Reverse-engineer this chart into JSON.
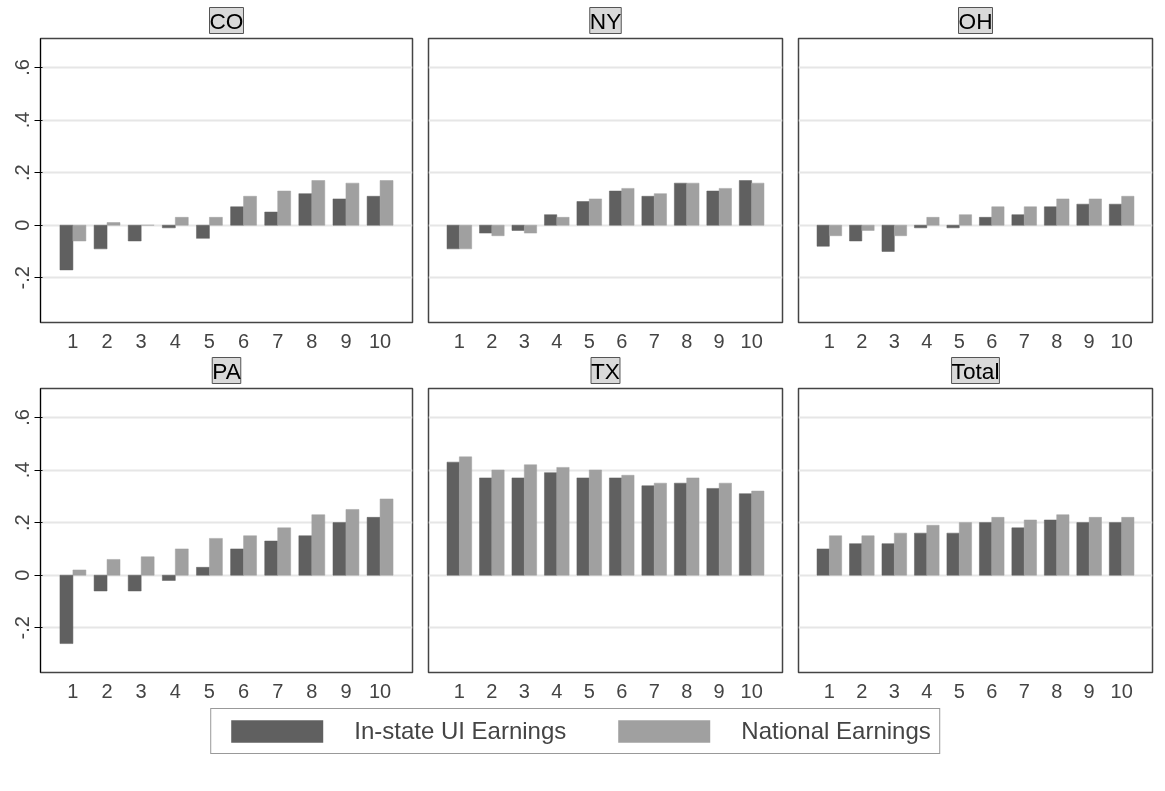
{
  "chart_data": [
    {
      "type": "bar",
      "title": "CO",
      "categories": [
        "1",
        "2",
        "3",
        "4",
        "5",
        "6",
        "7",
        "8",
        "9",
        "10"
      ],
      "ylim": [
        -0.37,
        0.71
      ],
      "yticks": [
        {
          "value": -0.2,
          "label": "-.2"
        },
        0,
        {
          "value": 0.2,
          "label": ".2"
        },
        {
          "value": 0.4,
          "label": ".4"
        },
        {
          "value": 0.6,
          "label": ".6"
        }
      ],
      "grid": "y",
      "series": [
        {
          "color": "#606060",
          "values": [
            -0.17,
            -0.09,
            -0.06,
            -0.01,
            -0.05,
            0.07,
            0.05,
            0.12,
            0.1,
            0.11
          ]
        },
        {
          "color": "#a0a0a0",
          "values": [
            -0.06,
            0.01,
            0.0,
            0.03,
            0.03,
            0.11,
            0.13,
            0.17,
            0.16,
            0.17
          ]
        }
      ]
    },
    {
      "type": "bar",
      "title": "NY",
      "categories": [
        "1",
        "2",
        "3",
        "4",
        "5",
        "6",
        "7",
        "8",
        "9",
        "10"
      ],
      "ylim": [
        -0.37,
        0.71
      ],
      "yticks": [
        {
          "value": -0.2,
          "label": null
        },
        {
          "value": 0,
          "label": null
        },
        {
          "value": 0.2,
          "label": null
        },
        {
          "value": 0.4,
          "label": null
        },
        {
          "value": 0.6,
          "label": null
        }
      ],
      "tick_labels": "x",
      "grid": "y",
      "series": [
        {
          "color": "#606060",
          "values": [
            -0.09,
            -0.03,
            -0.02,
            0.04,
            0.09,
            0.13,
            0.11,
            0.16,
            0.13,
            0.17
          ]
        },
        {
          "color": "#a0a0a0",
          "values": [
            -0.09,
            -0.04,
            -0.03,
            0.03,
            0.1,
            0.14,
            0.12,
            0.16,
            0.14,
            0.16
          ]
        }
      ]
    },
    {
      "type": "bar",
      "title": "OH",
      "categories": [
        "1",
        "2",
        "3",
        "4",
        "5",
        "6",
        "7",
        "8",
        "9",
        "10"
      ],
      "ylim": [
        -0.37,
        0.71
      ],
      "yticks": [
        {
          "value": -0.2,
          "label": null
        },
        {
          "value": 0,
          "label": null
        },
        {
          "value": 0.2,
          "label": null
        },
        {
          "value": 0.4,
          "label": null
        },
        {
          "value": 0.6,
          "label": null
        }
      ],
      "tick_labels": "x",
      "grid": "y",
      "series": [
        {
          "color": "#606060",
          "values": [
            -0.08,
            -0.06,
            -0.1,
            -0.01,
            -0.01,
            0.03,
            0.04,
            0.07,
            0.08,
            0.08
          ]
        },
        {
          "color": "#a0a0a0",
          "values": [
            -0.04,
            -0.02,
            -0.04,
            0.03,
            0.04,
            0.07,
            0.07,
            0.1,
            0.1,
            0.11
          ]
        }
      ]
    },
    {
      "type": "bar",
      "title": "PA",
      "categories": [
        "1",
        "2",
        "3",
        "4",
        "5",
        "6",
        "7",
        "8",
        "9",
        "10"
      ],
      "ylim": [
        -0.37,
        0.71
      ],
      "yticks": [
        {
          "value": -0.2,
          "label": "-.2"
        },
        0,
        {
          "value": 0.2,
          "label": ".2"
        },
        {
          "value": 0.4,
          "label": ".4"
        },
        {
          "value": 0.6,
          "label": ".6"
        }
      ],
      "grid": "y",
      "series": [
        {
          "color": "#606060",
          "values": [
            -0.26,
            -0.06,
            -0.06,
            -0.02,
            0.03,
            0.1,
            0.13,
            0.15,
            0.2,
            0.22
          ]
        },
        {
          "color": "#a0a0a0",
          "values": [
            0.02,
            0.06,
            0.07,
            0.1,
            0.14,
            0.15,
            0.18,
            0.23,
            0.25,
            0.29
          ]
        }
      ]
    },
    {
      "type": "bar",
      "title": "TX",
      "categories": [
        "1",
        "2",
        "3",
        "4",
        "5",
        "6",
        "7",
        "8",
        "9",
        "10"
      ],
      "ylim": [
        -0.37,
        0.71
      ],
      "yticks": [
        {
          "value": -0.2,
          "label": null
        },
        {
          "value": 0,
          "label": null
        },
        {
          "value": 0.2,
          "label": null
        },
        {
          "value": 0.4,
          "label": null
        },
        {
          "value": 0.6,
          "label": null
        }
      ],
      "tick_labels": "x",
      "grid": "y",
      "series": [
        {
          "color": "#606060",
          "values": [
            0.43,
            0.37,
            0.37,
            0.39,
            0.37,
            0.37,
            0.34,
            0.35,
            0.33,
            0.31
          ]
        },
        {
          "color": "#a0a0a0",
          "values": [
            0.45,
            0.4,
            0.42,
            0.41,
            0.4,
            0.38,
            0.35,
            0.37,
            0.35,
            0.32
          ]
        }
      ]
    },
    {
      "type": "bar",
      "title": "Total",
      "categories": [
        "1",
        "2",
        "3",
        "4",
        "5",
        "6",
        "7",
        "8",
        "9",
        "10"
      ],
      "ylim": [
        -0.37,
        0.71
      ],
      "yticks": [
        {
          "value": -0.2,
          "label": null
        },
        {
          "value": 0,
          "label": null
        },
        {
          "value": 0.2,
          "label": null
        },
        {
          "value": 0.4,
          "label": null
        },
        {
          "value": 0.6,
          "label": null
        }
      ],
      "tick_labels": "x",
      "grid": "y",
      "legend": "bottom",
      "series": [
        {
          "name": "In-state UI Earnings",
          "color": "#606060",
          "values": [
            0.1,
            0.12,
            0.12,
            0.16,
            0.16,
            0.2,
            0.18,
            0.21,
            0.2,
            0.2
          ]
        },
        {
          "name": "National Earnings",
          "color": "#a0a0a0",
          "values": [
            0.15,
            0.15,
            0.16,
            0.19,
            0.2,
            0.22,
            0.21,
            0.23,
            0.22,
            0.22
          ]
        }
      ]
    }
  ]
}
